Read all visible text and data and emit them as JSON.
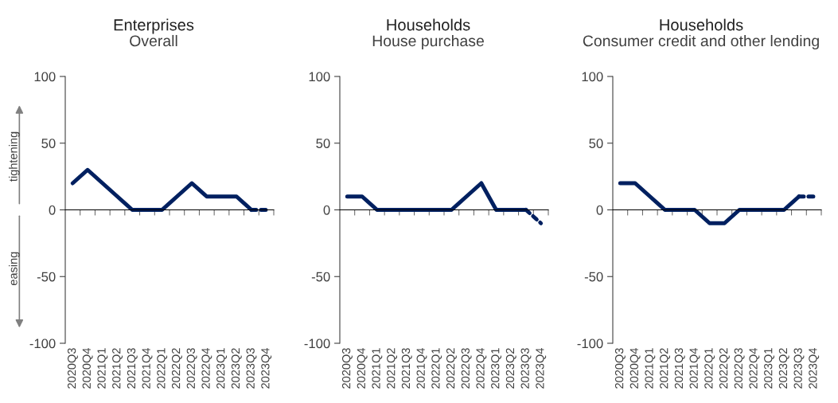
{
  "chart_data": [
    {
      "type": "line",
      "title": "Enterprises",
      "subtitle": "Overall",
      "categories": [
        "2020Q3",
        "2020Q4",
        "2021Q1",
        "2021Q2",
        "2021Q3",
        "2021Q4",
        "2022Q1",
        "2022Q2",
        "2022Q3",
        "2022Q4",
        "2023Q1",
        "2023Q2",
        "2023Q3",
        "2023Q4"
      ],
      "series": [
        {
          "color": "#002060",
          "line_style": "solid",
          "values": [
            20,
            30,
            20,
            10,
            0,
            0,
            0,
            10,
            20,
            10,
            10,
            10,
            0,
            null
          ]
        },
        {
          "color": "#002060",
          "line_style": "dashed",
          "values": [
            null,
            null,
            null,
            null,
            null,
            null,
            null,
            null,
            null,
            null,
            null,
            null,
            0,
            0
          ]
        }
      ],
      "ylim": [
        -100,
        100
      ],
      "yticks": [
        -100,
        -50,
        0,
        50,
        100
      ],
      "legend": false,
      "marker": "none",
      "annotations": [
        "tightening",
        "easing"
      ]
    },
    {
      "type": "line",
      "title": "Households",
      "subtitle": "House purchase",
      "categories": [
        "2020Q3",
        "2020Q4",
        "2021Q1",
        "2021Q2",
        "2021Q3",
        "2021Q4",
        "2022Q1",
        "2022Q2",
        "2022Q3",
        "2022Q4",
        "2023Q1",
        "2023Q2",
        "2023Q3",
        "2023Q4"
      ],
      "series": [
        {
          "color": "#002060",
          "line_style": "solid",
          "values": [
            10,
            10,
            0,
            0,
            0,
            0,
            0,
            0,
            10,
            20,
            0,
            0,
            0,
            null
          ]
        },
        {
          "color": "#002060",
          "line_style": "dashed",
          "values": [
            null,
            null,
            null,
            null,
            null,
            null,
            null,
            null,
            null,
            null,
            null,
            null,
            0,
            -10
          ]
        }
      ],
      "ylim": [
        -100,
        100
      ],
      "yticks": [
        -100,
        -50,
        0,
        50,
        100
      ],
      "legend": false,
      "marker": "none"
    },
    {
      "type": "line",
      "title": "Households",
      "subtitle": "Consumer credit and other lending",
      "categories": [
        "2020Q3",
        "2020Q4",
        "2021Q1",
        "2021Q2",
        "2021Q3",
        "2021Q4",
        "2022Q1",
        "2022Q2",
        "2022Q3",
        "2022Q4",
        "2023Q1",
        "2023Q2",
        "2023Q3",
        "2023Q4"
      ],
      "series": [
        {
          "color": "#002060",
          "line_style": "solid",
          "values": [
            20,
            20,
            10,
            0,
            0,
            0,
            -10,
            -10,
            0,
            0,
            0,
            0,
            10,
            null
          ]
        },
        {
          "color": "#002060",
          "line_style": "dashed",
          "values": [
            null,
            null,
            null,
            null,
            null,
            null,
            null,
            null,
            null,
            null,
            null,
            null,
            10,
            10
          ]
        }
      ],
      "ylim": [
        -100,
        100
      ],
      "yticks": [
        -100,
        -50,
        0,
        50,
        100
      ],
      "legend": false,
      "marker": "none"
    }
  ]
}
